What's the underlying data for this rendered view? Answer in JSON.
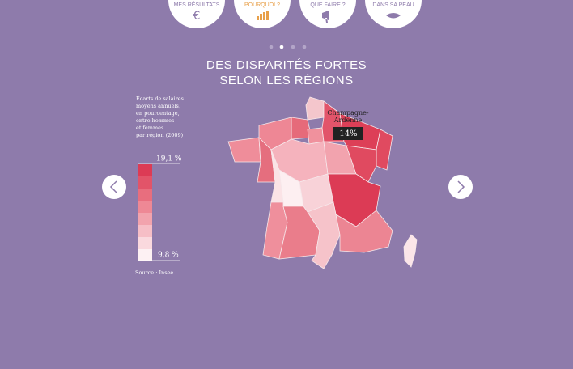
{
  "nav": [
    "MES RÉSULTATS",
    "POURQUOI ?",
    "QUE FAIRE ?",
    "DANS SA PEAU"
  ],
  "title_lines": [
    "DES DISPARITÉS FORTES",
    "SELON LES RÉGIONS"
  ],
  "legend": {
    "description_lines": [
      "Écarts de salaires",
      "moyens annuels,",
      "en pourcentage,",
      "entre hommes",
      "et femmes",
      "par région (2009)"
    ],
    "max_label": "19,1 %",
    "min_label": "9,8 %"
  },
  "source": "Source : Insee.",
  "tooltip": {
    "region_lines": [
      "Champagne-",
      "Ardenne"
    ],
    "value": "14%"
  }
}
